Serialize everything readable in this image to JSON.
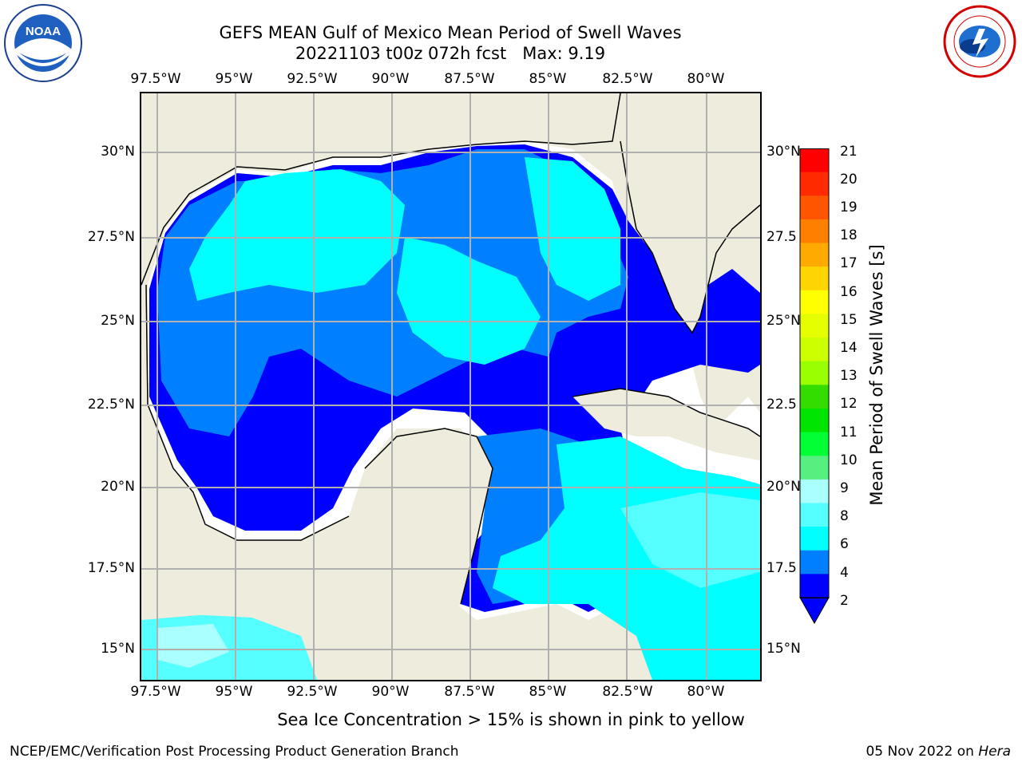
{
  "title_line1": "GEFS MEAN Gulf of Mexico Mean Period of Swell Waves",
  "title_line2": "20221103 t00z 072h fcst   Max: 9.19",
  "lon_ticks": [
    "97.5°W",
    "95°W",
    "92.5°W",
    "90°W",
    "87.5°W",
    "85°W",
    "82.5°W",
    "80°W"
  ],
  "lat_ticks_left": [
    "30°N",
    "27.5°N",
    "25°N",
    "22.5°N",
    "20°N",
    "17.5°N",
    "15°N"
  ],
  "lat_ticks_right": [
    "30°N",
    "27.5",
    "25°N",
    "22.5",
    "20°N",
    "17.5",
    "15°N"
  ],
  "colorbar": {
    "title": "Mean Period of Swell Waves [s]",
    "labels": [
      "21",
      "20",
      "19",
      "18",
      "17",
      "16",
      "15",
      "14",
      "13",
      "12",
      "11",
      "10",
      "9",
      "8",
      "6",
      "4",
      "2"
    ],
    "colors": [
      "#ff0000",
      "#ff2a00",
      "#ff5500",
      "#ff8000",
      "#ffaa00",
      "#ffd400",
      "#ffff00",
      "#e6ff00",
      "#ccff00",
      "#99ff00",
      "#33dd00",
      "#00e600",
      "#00ff33",
      "#55f080",
      "#aaffff",
      "#55ffff",
      "#00ffff",
      "#0080ff",
      "#0000ff"
    ]
  },
  "legend_note": "Sea Ice Concentration > 15% is shown in pink to yellow",
  "footer_left": "NCEP/EMC/Verification Post Processing Product Generation Branch",
  "footer_date": "05 Nov 2022 on ",
  "footer_host": "Hera",
  "logo_left_text": "NOAA",
  "colors": {
    "land": "#eeecdc",
    "blue_dark": "#0000ff",
    "blue_mid": "#0080ff",
    "cyan": "#00ffff",
    "cyan_light": "#55ffff",
    "grid": "#b0b0b0"
  }
}
